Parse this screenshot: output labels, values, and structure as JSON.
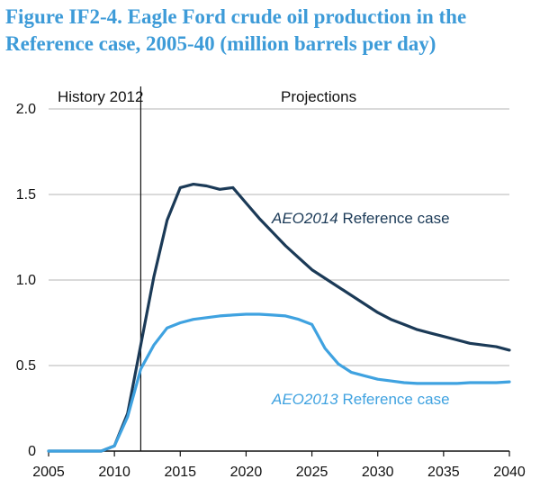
{
  "figure": {
    "title_line1": "Figure IF2-4. Eagle Ford crude oil production in the",
    "title_line2": "Reference case, 2005-40 (million barrels per day)"
  },
  "colors": {
    "title": "#3d9bd8",
    "aeo2014": "#1b3a57",
    "aeo2013": "#3fa2e0",
    "grid": "#b5b5b5",
    "axis": "#111111"
  },
  "chart_data": {
    "type": "line",
    "title": "Figure IF2-4. Eagle Ford crude oil production in the Reference case, 2005-40 (million barrels per day)",
    "xlabel": "",
    "ylabel": "",
    "xlim": [
      2005,
      2040
    ],
    "ylim": [
      0,
      2.0
    ],
    "x_ticks": [
      2005,
      2010,
      2015,
      2020,
      2025,
      2030,
      2035,
      2040
    ],
    "y_ticks": [
      0,
      0.5,
      1.0,
      1.5,
      2.0
    ],
    "y_tick_labels": [
      "0",
      "0.5",
      "1.0",
      "1.5",
      "2.0"
    ],
    "grid": "horizontal",
    "divider": {
      "x": 2012,
      "left_label": "History 2012",
      "right_label": "Projections"
    },
    "series": [
      {
        "name": "AEO2014 Reference case",
        "label_italic": "AEO2014",
        "label_rest": " Reference case",
        "color": "#1b3a57",
        "x": [
          2005,
          2006,
          2007,
          2008,
          2009,
          2010,
          2011,
          2012,
          2013,
          2014,
          2015,
          2016,
          2017,
          2018,
          2019,
          2020,
          2021,
          2022,
          2023,
          2024,
          2025,
          2026,
          2027,
          2028,
          2029,
          2030,
          2031,
          2032,
          2033,
          2034,
          2035,
          2036,
          2037,
          2038,
          2039,
          2040
        ],
        "values": [
          0,
          0,
          0,
          0,
          0,
          0.03,
          0.22,
          0.62,
          1.02,
          1.35,
          1.54,
          1.56,
          1.55,
          1.53,
          1.54,
          1.45,
          1.36,
          1.28,
          1.2,
          1.13,
          1.06,
          1.01,
          0.96,
          0.91,
          0.86,
          0.81,
          0.77,
          0.74,
          0.71,
          0.69,
          0.67,
          0.65,
          0.63,
          0.62,
          0.61,
          0.59
        ]
      },
      {
        "name": "AEO2013 Reference case",
        "label_italic": "AEO2013",
        "label_rest": " Reference case",
        "color": "#3fa2e0",
        "x": [
          2005,
          2006,
          2007,
          2008,
          2009,
          2010,
          2011,
          2012,
          2013,
          2014,
          2015,
          2016,
          2017,
          2018,
          2019,
          2020,
          2021,
          2022,
          2023,
          2024,
          2025,
          2026,
          2027,
          2028,
          2029,
          2030,
          2031,
          2032,
          2033,
          2034,
          2035,
          2036,
          2037,
          2038,
          2039,
          2040
        ],
        "values": [
          0,
          0,
          0,
          0,
          0,
          0.03,
          0.2,
          0.48,
          0.62,
          0.72,
          0.75,
          0.77,
          0.78,
          0.79,
          0.795,
          0.8,
          0.8,
          0.795,
          0.79,
          0.77,
          0.74,
          0.6,
          0.51,
          0.46,
          0.44,
          0.42,
          0.41,
          0.4,
          0.395,
          0.395,
          0.395,
          0.395,
          0.4,
          0.4,
          0.4,
          0.405
        ]
      }
    ]
  }
}
